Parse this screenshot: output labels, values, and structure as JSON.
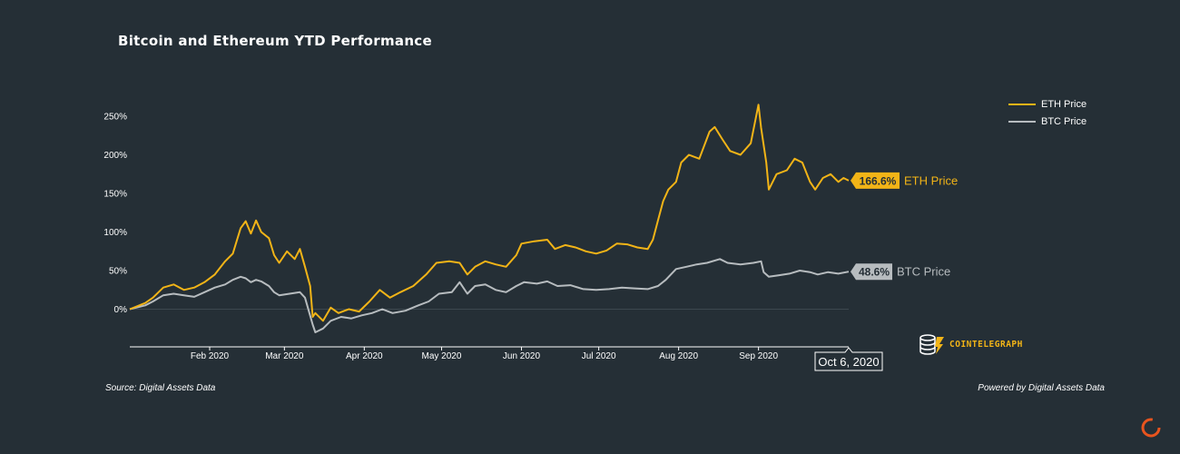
{
  "page": {
    "title": "Bitcoin and Ethereum YTD Performance",
    "source": "Source: Digital Assets Data",
    "powered_by": "Powered by Digital Assets Data",
    "brand": "COINTELEGRAPH"
  },
  "colors": {
    "background": "#252f36",
    "eth": "#f2b417",
    "btc": "#b7bcbf",
    "text": "#ffffff"
  },
  "chart_data": {
    "type": "line",
    "title": "Bitcoin and Ethereum YTD Performance",
    "xlabel": "",
    "ylabel": "",
    "x_range": [
      "2020-01-01",
      "2020-10-06"
    ],
    "ylim": [
      -50,
      270
    ],
    "y_ticks": [
      0,
      50,
      100,
      150,
      200,
      250
    ],
    "y_tick_labels": [
      "0%",
      "50%",
      "100%",
      "150%",
      "200%",
      "250%"
    ],
    "x_ticks": [
      "2020-02-01",
      "2020-03-01",
      "2020-04-01",
      "2020-05-01",
      "2020-06-01",
      "2020-07-01",
      "2020-08-01",
      "2020-09-01"
    ],
    "x_tick_labels": [
      "Feb 2020",
      "Mar 2020",
      "Apr 2020",
      "May 2020",
      "Jun 2020",
      "Jul 2020",
      "Aug 2020",
      "Sep 2020"
    ],
    "grid": false,
    "legend_position": "top-right",
    "hover_date_label": "Oct 6, 2020",
    "series": [
      {
        "name": "ETH Price",
        "end_label": "166.6%",
        "points": [
          [
            "2020-01-01",
            0
          ],
          [
            "2020-01-07",
            8
          ],
          [
            "2020-01-10",
            15
          ],
          [
            "2020-01-14",
            28
          ],
          [
            "2020-01-18",
            32
          ],
          [
            "2020-01-22",
            25
          ],
          [
            "2020-01-26",
            28
          ],
          [
            "2020-01-30",
            35
          ],
          [
            "2020-02-03",
            45
          ],
          [
            "2020-02-07",
            62
          ],
          [
            "2020-02-10",
            72
          ],
          [
            "2020-02-13",
            105
          ],
          [
            "2020-02-15",
            114
          ],
          [
            "2020-02-17",
            98
          ],
          [
            "2020-02-19",
            115
          ],
          [
            "2020-02-21",
            100
          ],
          [
            "2020-02-24",
            92
          ],
          [
            "2020-02-26",
            70
          ],
          [
            "2020-02-28",
            60
          ],
          [
            "2020-03-02",
            75
          ],
          [
            "2020-03-05",
            65
          ],
          [
            "2020-03-07",
            78
          ],
          [
            "2020-03-09",
            55
          ],
          [
            "2020-03-11",
            30
          ],
          [
            "2020-03-12",
            -10
          ],
          [
            "2020-03-13",
            -5
          ],
          [
            "2020-03-16",
            -15
          ],
          [
            "2020-03-19",
            2
          ],
          [
            "2020-03-22",
            -5
          ],
          [
            "2020-03-26",
            0
          ],
          [
            "2020-03-30",
            -3
          ],
          [
            "2020-04-03",
            10
          ],
          [
            "2020-04-07",
            25
          ],
          [
            "2020-04-11",
            15
          ],
          [
            "2020-04-15",
            22
          ],
          [
            "2020-04-20",
            30
          ],
          [
            "2020-04-25",
            45
          ],
          [
            "2020-04-29",
            60
          ],
          [
            "2020-05-04",
            62
          ],
          [
            "2020-05-08",
            60
          ],
          [
            "2020-05-11",
            45
          ],
          [
            "2020-05-14",
            55
          ],
          [
            "2020-05-18",
            62
          ],
          [
            "2020-05-22",
            58
          ],
          [
            "2020-05-26",
            55
          ],
          [
            "2020-05-30",
            70
          ],
          [
            "2020-06-01",
            85
          ],
          [
            "2020-06-06",
            88
          ],
          [
            "2020-06-11",
            90
          ],
          [
            "2020-06-14",
            78
          ],
          [
            "2020-06-18",
            83
          ],
          [
            "2020-06-22",
            80
          ],
          [
            "2020-06-26",
            75
          ],
          [
            "2020-06-30",
            72
          ],
          [
            "2020-07-04",
            76
          ],
          [
            "2020-07-08",
            85
          ],
          [
            "2020-07-12",
            84
          ],
          [
            "2020-07-16",
            80
          ],
          [
            "2020-07-20",
            78
          ],
          [
            "2020-07-22",
            90
          ],
          [
            "2020-07-24",
            115
          ],
          [
            "2020-07-26",
            140
          ],
          [
            "2020-07-28",
            155
          ],
          [
            "2020-07-31",
            165
          ],
          [
            "2020-08-02",
            190
          ],
          [
            "2020-08-05",
            200
          ],
          [
            "2020-08-09",
            195
          ],
          [
            "2020-08-13",
            230
          ],
          [
            "2020-08-15",
            236
          ],
          [
            "2020-08-18",
            220
          ],
          [
            "2020-08-21",
            205
          ],
          [
            "2020-08-25",
            200
          ],
          [
            "2020-08-29",
            215
          ],
          [
            "2020-09-01",
            265
          ],
          [
            "2020-09-02",
            235
          ],
          [
            "2020-09-04",
            190
          ],
          [
            "2020-09-05",
            155
          ],
          [
            "2020-09-08",
            175
          ],
          [
            "2020-09-12",
            180
          ],
          [
            "2020-09-15",
            195
          ],
          [
            "2020-09-18",
            190
          ],
          [
            "2020-09-21",
            165
          ],
          [
            "2020-09-23",
            155
          ],
          [
            "2020-09-26",
            170
          ],
          [
            "2020-09-29",
            175
          ],
          [
            "2020-10-02",
            165
          ],
          [
            "2020-10-04",
            170
          ],
          [
            "2020-10-06",
            166.6
          ]
        ]
      },
      {
        "name": "BTC Price",
        "end_label": "48.6%",
        "points": [
          [
            "2020-01-01",
            0
          ],
          [
            "2020-01-07",
            5
          ],
          [
            "2020-01-10",
            10
          ],
          [
            "2020-01-14",
            18
          ],
          [
            "2020-01-18",
            20
          ],
          [
            "2020-01-22",
            18
          ],
          [
            "2020-01-26",
            16
          ],
          [
            "2020-01-30",
            22
          ],
          [
            "2020-02-03",
            28
          ],
          [
            "2020-02-07",
            32
          ],
          [
            "2020-02-10",
            38
          ],
          [
            "2020-02-13",
            42
          ],
          [
            "2020-02-15",
            40
          ],
          [
            "2020-02-17",
            35
          ],
          [
            "2020-02-19",
            38
          ],
          [
            "2020-02-21",
            36
          ],
          [
            "2020-02-24",
            30
          ],
          [
            "2020-02-26",
            22
          ],
          [
            "2020-02-28",
            18
          ],
          [
            "2020-03-03",
            20
          ],
          [
            "2020-03-07",
            22
          ],
          [
            "2020-03-09",
            15
          ],
          [
            "2020-03-12",
            -20
          ],
          [
            "2020-03-13",
            -30
          ],
          [
            "2020-03-16",
            -25
          ],
          [
            "2020-03-19",
            -15
          ],
          [
            "2020-03-23",
            -10
          ],
          [
            "2020-03-27",
            -12
          ],
          [
            "2020-03-31",
            -8
          ],
          [
            "2020-04-04",
            -5
          ],
          [
            "2020-04-08",
            0
          ],
          [
            "2020-04-12",
            -5
          ],
          [
            "2020-04-17",
            -2
          ],
          [
            "2020-04-22",
            5
          ],
          [
            "2020-04-26",
            10
          ],
          [
            "2020-04-30",
            20
          ],
          [
            "2020-05-05",
            22
          ],
          [
            "2020-05-08",
            35
          ],
          [
            "2020-05-11",
            20
          ],
          [
            "2020-05-14",
            30
          ],
          [
            "2020-05-18",
            32
          ],
          [
            "2020-05-22",
            25
          ],
          [
            "2020-05-26",
            22
          ],
          [
            "2020-05-30",
            30
          ],
          [
            "2020-06-02",
            35
          ],
          [
            "2020-06-07",
            33
          ],
          [
            "2020-06-11",
            36
          ],
          [
            "2020-06-15",
            30
          ],
          [
            "2020-06-20",
            31
          ],
          [
            "2020-06-25",
            26
          ],
          [
            "2020-06-30",
            25
          ],
          [
            "2020-07-05",
            26
          ],
          [
            "2020-07-10",
            28
          ],
          [
            "2020-07-15",
            27
          ],
          [
            "2020-07-20",
            26
          ],
          [
            "2020-07-24",
            30
          ],
          [
            "2020-07-27",
            38
          ],
          [
            "2020-07-31",
            52
          ],
          [
            "2020-08-04",
            55
          ],
          [
            "2020-08-08",
            58
          ],
          [
            "2020-08-12",
            60
          ],
          [
            "2020-08-17",
            65
          ],
          [
            "2020-08-20",
            60
          ],
          [
            "2020-08-25",
            58
          ],
          [
            "2020-08-30",
            60
          ],
          [
            "2020-09-02",
            62
          ],
          [
            "2020-09-03",
            48
          ],
          [
            "2020-09-05",
            42
          ],
          [
            "2020-09-09",
            44
          ],
          [
            "2020-09-13",
            46
          ],
          [
            "2020-09-17",
            50
          ],
          [
            "2020-09-21",
            48
          ],
          [
            "2020-09-24",
            45
          ],
          [
            "2020-09-28",
            48
          ],
          [
            "2020-10-02",
            46
          ],
          [
            "2020-10-06",
            48.6
          ]
        ]
      }
    ]
  }
}
